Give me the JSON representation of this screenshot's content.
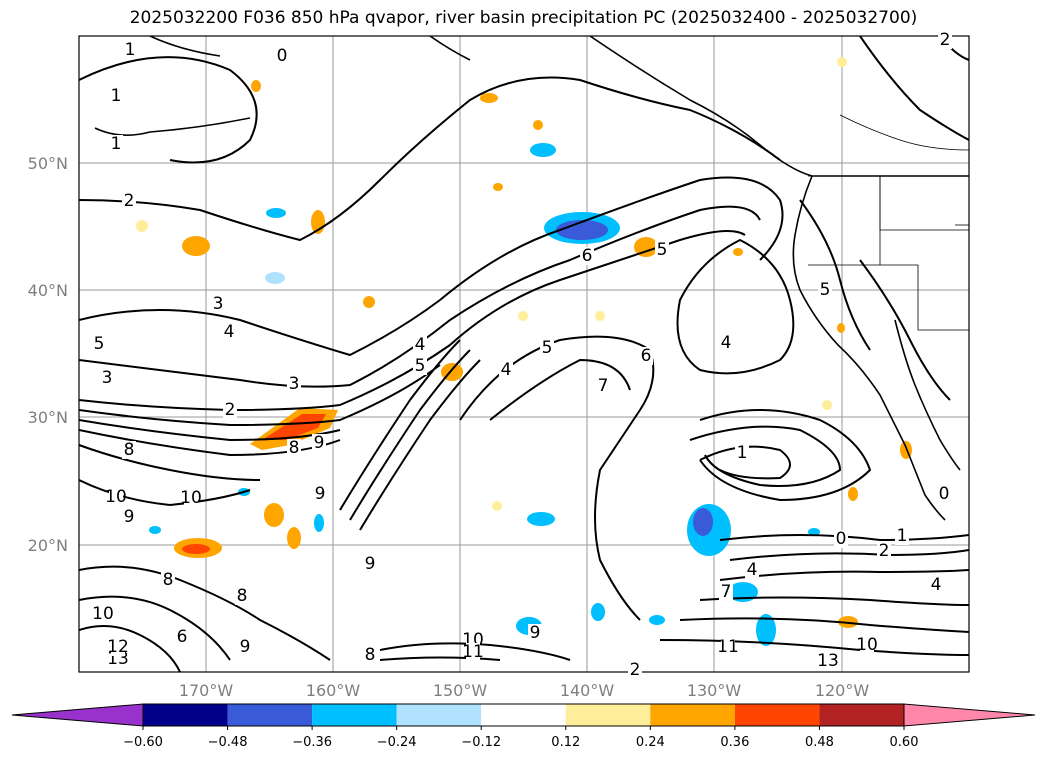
{
  "title": "2025032200 F036 850 hPa qvapor, river basin precipitation PC (2025032400 - 2025032700)",
  "map": {
    "lat_labels": [
      "50°N",
      "40°N",
      "30°N",
      "20°N"
    ],
    "lon_labels": [
      "170°W",
      "160°W",
      "150°W",
      "140°W",
      "130°W",
      "120°W"
    ],
    "grid": true,
    "extent": {
      "lon_min": -180,
      "lon_max": -110,
      "lat_min": 10,
      "lat_max": 60
    },
    "contour_labels": [
      "1",
      "0",
      "1",
      "1",
      "2",
      "2",
      "3",
      "4",
      "5",
      "3",
      "3",
      "2",
      "4",
      "5",
      "6",
      "5",
      "4",
      "5",
      "6",
      "7",
      "4",
      "5",
      "8",
      "9",
      "8",
      "10",
      "10",
      "9",
      "9",
      "8",
      "8",
      "9",
      "10",
      "6",
      "4",
      "9",
      "2",
      "10",
      "11",
      "11",
      "13",
      "10",
      "13",
      "12",
      "8",
      "9",
      "7",
      "1",
      "2",
      "1",
      "0",
      "0",
      "4"
    ]
  },
  "colorbar": {
    "ticks": [
      "−0.60",
      "−0.48",
      "−0.36",
      "−0.24",
      "−0.12",
      "0.12",
      "0.24",
      "0.36",
      "0.48",
      "0.60"
    ],
    "colors": [
      "#9932cc",
      "#00008b",
      "#3a5bd9",
      "#00bfff",
      "#b0e2ff",
      "#ffffff",
      "#ffee99",
      "#ffa500",
      "#ff4500",
      "#b22222",
      "#ff88aa"
    ]
  }
}
